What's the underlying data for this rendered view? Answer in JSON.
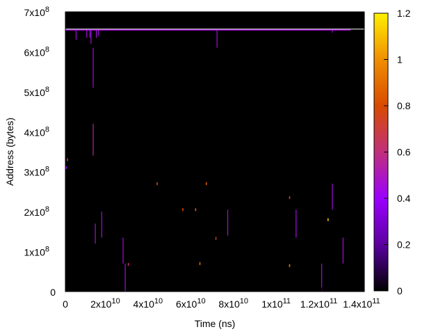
{
  "chart_data": {
    "type": "heatmap",
    "title": "",
    "xlabel": "Time (ns)",
    "ylabel": "Address (bytes)",
    "xlim": [
      0,
      140000000000
    ],
    "ylim": [
      0,
      700000000
    ],
    "x_ticks": [
      {
        "value": 0,
        "base": "0",
        "exp": ""
      },
      {
        "value": 20000000000,
        "base": "2x10",
        "exp": "10"
      },
      {
        "value": 40000000000,
        "base": "4x10",
        "exp": "10"
      },
      {
        "value": 60000000000,
        "base": "6x10",
        "exp": "10"
      },
      {
        "value": 80000000000,
        "base": "8x10",
        "exp": "10"
      },
      {
        "value": 100000000000,
        "base": "1x10",
        "exp": "11"
      },
      {
        "value": 120000000000,
        "base": "1.2x10",
        "exp": "11"
      },
      {
        "value": 140000000000,
        "base": "1.4x10",
        "exp": "11"
      }
    ],
    "y_ticks": [
      {
        "value": 0,
        "base": "0",
        "exp": ""
      },
      {
        "value": 100000000,
        "base": "1x10",
        "exp": "8"
      },
      {
        "value": 200000000,
        "base": "2x10",
        "exp": "8"
      },
      {
        "value": 300000000,
        "base": "3x10",
        "exp": "8"
      },
      {
        "value": 400000000,
        "base": "4x10",
        "exp": "8"
      },
      {
        "value": 500000000,
        "base": "5x10",
        "exp": "8"
      },
      {
        "value": 600000000,
        "base": "6x10",
        "exp": "8"
      },
      {
        "value": 700000000,
        "base": "7x10",
        "exp": "8"
      }
    ],
    "colorbar": {
      "range": [
        0,
        1.2
      ],
      "ticks": [
        "0",
        "0.2",
        "0.4",
        "0.6",
        "0.8",
        "1",
        "1.2"
      ],
      "stops": [
        "#000000",
        "#5a00a0",
        "#9b00ff",
        "#c0307a",
        "#d84a00",
        "#f08f00",
        "#fff000"
      ]
    },
    "background": "#000000",
    "data_extent": {
      "x": [
        0,
        140000000000
      ],
      "y": [
        0,
        655000000
      ]
    },
    "segments": [
      {
        "x": 5000000000.0,
        "y0": 630000000.0,
        "y1": 655000000.0,
        "v": 0.45
      },
      {
        "x": 10000000000.0,
        "y0": 635000000.0,
        "y1": 655000000.0,
        "v": 0.45
      },
      {
        "x": 11500000000.0,
        "y0": 635000000.0,
        "y1": 655000000.0,
        "v": 0.45
      },
      {
        "x": 12000000000.0,
        "y0": 620000000.0,
        "y1": 655000000.0,
        "v": 0.45
      },
      {
        "x": 13000000000.0,
        "y0": 510000000.0,
        "y1": 610000000.0,
        "v": 0.45
      },
      {
        "x": 14500000000.0,
        "y0": 635000000.0,
        "y1": 655000000.0,
        "v": 0.45
      },
      {
        "x": 15500000000.0,
        "y0": 640000000.0,
        "y1": 655000000.0,
        "v": 0.45
      },
      {
        "x": 71000000000.0,
        "y0": 610000000.0,
        "y1": 655000000.0,
        "v": 0.45
      },
      {
        "x": 125000000000.0,
        "y0": 648000000.0,
        "y1": 655000000.0,
        "v": 0.45
      },
      {
        "x": 13000000000.0,
        "y0": 340000000.0,
        "y1": 420000000.0,
        "v": 0.55
      },
      {
        "x": 14000000000.0,
        "y0": 120000000.0,
        "y1": 170000000.0,
        "v": 0.45
      },
      {
        "x": 17000000000.0,
        "y0": 135000000.0,
        "y1": 200000000.0,
        "v": 0.45
      },
      {
        "x": 27000000000.0,
        "y0": 70000000.0,
        "y1": 135000000.0,
        "v": 0.45
      },
      {
        "x": 28000000000.0,
        "y0": 0.0,
        "y1": 70000000.0,
        "v": 0.45
      },
      {
        "x": 76000000000.0,
        "y0": 140000000.0,
        "y1": 205000000.0,
        "v": 0.45
      },
      {
        "x": 108000000000.0,
        "y0": 135000000.0,
        "y1": 205000000.0,
        "v": 0.45
      },
      {
        "x": 120000000000.0,
        "y0": 0.0,
        "y1": 70000000.0,
        "v": 0.45
      },
      {
        "x": 125000000000.0,
        "y0": 205000000.0,
        "y1": 270000000.0,
        "v": 0.45
      },
      {
        "x": 130000000000.0,
        "y0": 70000000.0,
        "y1": 135000000.0,
        "v": 0.45
      }
    ],
    "points": [
      {
        "x": 1000000000.0,
        "y": 330000000.0,
        "v": 0.7
      },
      {
        "x": 500000000.0,
        "y": 310000000.0,
        "v": 0.45
      },
      {
        "x": 43000000000.0,
        "y": 270000000.0,
        "v": 0.75
      },
      {
        "x": 55000000000.0,
        "y": 205000000.0,
        "v": 0.8
      },
      {
        "x": 61000000000.0,
        "y": 205000000.0,
        "v": 0.85
      },
      {
        "x": 66000000000.0,
        "y": 270000000.0,
        "v": 0.85
      },
      {
        "x": 70500000000.0,
        "y": 133000000.0,
        "v": 0.7
      },
      {
        "x": 63000000000.0,
        "y": 70000000.0,
        "v": 0.9
      },
      {
        "x": 29500000000.0,
        "y": 68000000.0,
        "v": 0.6
      },
      {
        "x": 105000000000.0,
        "y": 235000000.0,
        "v": 0.7
      },
      {
        "x": 105000000000.0,
        "y": 65000000.0,
        "v": 0.95
      },
      {
        "x": 123000000000.0,
        "y": 180000000.0,
        "v": 1.1
      }
    ]
  }
}
